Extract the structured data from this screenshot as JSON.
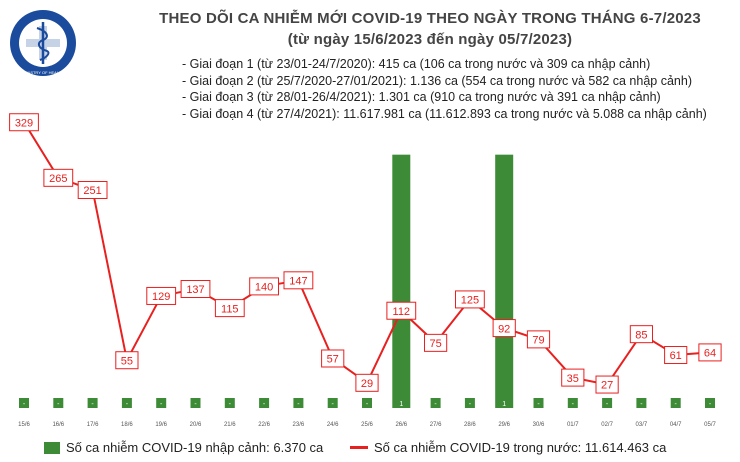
{
  "logo": {
    "text_top": "BỘ Y TẾ",
    "text_bottom": "MINISTRY OF HEALTH",
    "color": "#1a4b9c"
  },
  "header": {
    "title_line1": "THEO DÕI CA NHIỄM MỚI COVID-19 THEO NGÀY TRONG THÁNG 6-7/2023",
    "title_line2": "(từ ngày 15/6/2023 đến ngày 05/7/2023)"
  },
  "phases": [
    "- Giai đoạn 1 (từ 23/01-24/7/2020): 415 ca (106 ca trong nước và 309 ca nhập cảnh)",
    "- Giai đoạn 2 (từ 25/7/2020-27/01/2021): 1.136 ca (554 ca trong nước và 582 ca nhập cảnh)",
    "- Giai đoạn 3 (từ 28/01-26/4/2021): 1.301 ca (910 ca trong nước và 391 ca nhập cảnh)",
    "- Giai đoạn 4 (từ 27/4/2021): 11.617.981 ca (11.612.893 ca trong nước và 5.088 ca nhập cảnh)"
  ],
  "colors": {
    "bar": "#3d8b37",
    "line": "#e8201f",
    "label_bg": "#ffffff"
  },
  "chart_data": {
    "type": "bar+line",
    "categories": [
      "15/6",
      "16/6",
      "17/6",
      "18/6",
      "19/6",
      "20/6",
      "21/6",
      "22/6",
      "23/6",
      "24/6",
      "25/6",
      "26/6",
      "27/6",
      "28/6",
      "29/6",
      "30/6",
      "01/7",
      "02/7",
      "03/7",
      "04/7",
      "05/7"
    ],
    "series": [
      {
        "name": "Số ca nhiễm COVID-19 nhập cảnh: 6.370 ca",
        "type": "bar",
        "axis": "right",
        "values": [
          0,
          0,
          0,
          0,
          0,
          0,
          0,
          0,
          0,
          0,
          0,
          1,
          0,
          0,
          1,
          0,
          0,
          0,
          0,
          0,
          0
        ],
        "labels": [
          "-",
          "-",
          "-",
          "-",
          "-",
          "-",
          "-",
          "-",
          "-",
          "-",
          "-",
          "1",
          "-",
          "-",
          "1",
          "-",
          "-",
          "-",
          "-",
          "-",
          "-"
        ]
      },
      {
        "name": "Số ca nhiễm COVID-19 trong nước: 11.614.463 ca",
        "type": "line",
        "axis": "left",
        "values": [
          329,
          265,
          251,
          55,
          129,
          137,
          115,
          140,
          147,
          57,
          29,
          112,
          75,
          125,
          92,
          79,
          35,
          27,
          85,
          61,
          64
        ]
      }
    ],
    "ylim_left": [
      0,
      350
    ],
    "ylim_right": [
      0,
      1.2
    ],
    "grid": false,
    "legend": "bottom"
  }
}
